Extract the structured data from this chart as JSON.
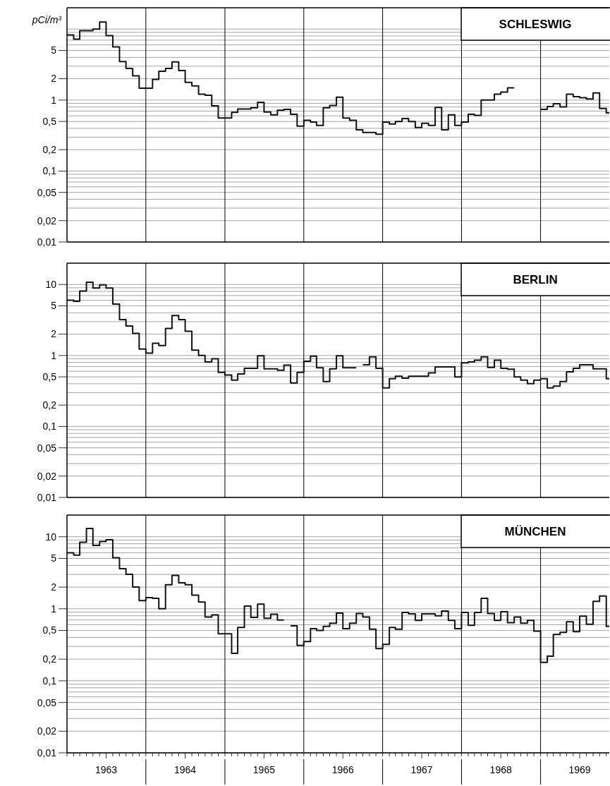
{
  "chart_data": [
    {
      "type": "step",
      "title": "SCHLESWIG",
      "ylabel": "pCi/m³",
      "log": true,
      "grid": "y",
      "tick_labels": "y",
      "color": "#111111",
      "line_style": "solid",
      "xlim": [
        "1963-01-01",
        "1969-11-15"
      ],
      "ylim": [
        0.01,
        20
      ],
      "yticks": [
        {
          "value": 0.01,
          "label": "0,01"
        },
        {
          "value": 0.02,
          "label": "0,02"
        },
        {
          "value": 0.03,
          "label": null
        },
        {
          "value": 0.04,
          "label": null
        },
        {
          "value": 0.05,
          "label": "0,05"
        },
        {
          "value": 0.06,
          "label": null
        },
        {
          "value": 0.07,
          "label": null
        },
        {
          "value": 0.08,
          "label": null
        },
        {
          "value": 0.09,
          "label": null
        },
        {
          "value": 0.1,
          "label": "0,1"
        },
        {
          "value": 0.2,
          "label": "0,2"
        },
        {
          "value": 0.3,
          "label": null
        },
        {
          "value": 0.4,
          "label": null
        },
        {
          "value": 0.5,
          "label": "0,5"
        },
        {
          "value": 0.6,
          "label": null
        },
        {
          "value": 0.7,
          "label": null
        },
        {
          "value": 0.8,
          "label": null
        },
        {
          "value": 0.9,
          "label": null
        },
        1,
        2,
        {
          "value": 3,
          "label": null
        },
        {
          "value": 4,
          "label": null
        },
        5,
        {
          "value": 6,
          "label": null
        },
        {
          "value": 7,
          "label": null
        },
        {
          "value": 8,
          "label": null
        },
        {
          "value": 9,
          "label": null
        },
        {
          "value": 10,
          "label": null
        }
      ],
      "ref_lines": [
        {
          "axis": "x",
          "value": "1964-01-01"
        },
        {
          "axis": "x",
          "value": "1965-01-01"
        },
        {
          "axis": "x",
          "value": "1966-01-01"
        },
        {
          "axis": "x",
          "value": "1967-01-01"
        },
        {
          "axis": "x",
          "value": "1968-01-01"
        },
        {
          "axis": "x",
          "value": "1969-01-01"
        }
      ],
      "x": [
        "1963-01",
        "1963-02",
        "1963-03",
        "1963-04",
        "1963-05",
        "1963-06",
        "1963-07",
        "1963-08",
        "1963-09",
        "1963-10",
        "1963-11",
        "1963-12",
        "1964-01",
        "1964-02",
        "1964-03",
        "1964-04",
        "1964-05",
        "1964-06",
        "1964-07",
        "1964-08",
        "1964-09",
        "1964-10",
        "1964-11",
        "1964-12",
        "1965-01",
        "1965-02",
        "1965-03",
        "1965-04",
        "1965-05",
        "1965-06",
        "1965-07",
        "1965-08",
        "1965-09",
        "1965-10",
        "1965-11",
        "1965-12",
        "1966-01",
        "1966-02",
        "1966-03",
        "1966-04",
        "1966-05",
        "1966-06",
        "1966-07",
        "1966-08",
        "1966-09",
        "1966-10",
        "1966-11",
        "1966-12",
        "1967-01",
        "1967-02",
        "1967-03",
        "1967-04",
        "1967-05",
        "1967-06",
        "1967-07",
        "1967-08",
        "1967-09",
        "1967-10",
        "1967-11",
        "1967-12",
        "1968-01",
        "1968-02",
        "1968-03",
        "1968-04",
        "1968-05",
        "1968-06",
        "1968-07",
        "1968-08",
        "1968-09",
        "1968-10",
        "1968-11",
        "1968-12",
        "1969-01",
        "1969-02",
        "1969-03",
        "1969-04",
        "1969-05",
        "1969-06",
        "1969-07",
        "1969-08",
        "1969-09",
        "1969-10",
        "1969-11"
      ],
      "values": [
        8.3,
        7.2,
        9.5,
        9.5,
        10,
        12.6,
        8.1,
        5.6,
        3.5,
        2.8,
        2.2,
        1.47,
        1.47,
        1.96,
        2.55,
        2.8,
        3.46,
        2.6,
        1.78,
        1.58,
        1.21,
        1.17,
        0.83,
        0.56,
        0.56,
        0.67,
        0.75,
        0.75,
        0.78,
        0.93,
        0.68,
        0.62,
        0.72,
        0.74,
        0.63,
        0.43,
        0.52,
        0.49,
        0.44,
        0.78,
        0.84,
        1.1,
        0.56,
        0.52,
        0.38,
        0.35,
        0.35,
        0.33,
        0.49,
        0.46,
        0.5,
        0.55,
        0.5,
        0.41,
        0.47,
        0.44,
        0.79,
        0.38,
        0.62,
        0.44,
        0.49,
        0.63,
        0.61,
        1.0,
        1.0,
        1.21,
        1.3,
        1.49,
        null,
        null,
        null,
        null,
        0.74,
        0.81,
        0.89,
        0.8,
        1.21,
        1.12,
        1.08,
        1.04,
        1.26,
        0.76,
        0.66
      ]
    },
    {
      "type": "step",
      "title": "BERLIN",
      "log": true,
      "grid": "y",
      "tick_labels": "y",
      "color": "#111111",
      "line_style": "solid",
      "xlim": [
        "1963-01-01",
        "1969-11-15"
      ],
      "ylim": [
        0.01,
        20
      ],
      "yticks": [
        {
          "value": 0.01,
          "label": "0,01"
        },
        {
          "value": 0.02,
          "label": "0,02"
        },
        {
          "value": 0.03,
          "label": null
        },
        {
          "value": 0.04,
          "label": null
        },
        {
          "value": 0.05,
          "label": "0,05"
        },
        {
          "value": 0.06,
          "label": null
        },
        {
          "value": 0.07,
          "label": null
        },
        {
          "value": 0.08,
          "label": null
        },
        {
          "value": 0.09,
          "label": null
        },
        {
          "value": 0.1,
          "label": "0,1"
        },
        {
          "value": 0.2,
          "label": "0,2"
        },
        {
          "value": 0.3,
          "label": null
        },
        {
          "value": 0.4,
          "label": null
        },
        {
          "value": 0.5,
          "label": "0,5"
        },
        {
          "value": 0.6,
          "label": null
        },
        {
          "value": 0.7,
          "label": null
        },
        {
          "value": 0.8,
          "label": null
        },
        {
          "value": 0.9,
          "label": null
        },
        1,
        2,
        {
          "value": 3,
          "label": null
        },
        {
          "value": 4,
          "label": null
        },
        5,
        {
          "value": 6,
          "label": null
        },
        {
          "value": 7,
          "label": null
        },
        {
          "value": 8,
          "label": null
        },
        {
          "value": 9,
          "label": null
        },
        10
      ],
      "ref_lines": [
        {
          "axis": "x",
          "value": "1964-01-01"
        },
        {
          "axis": "x",
          "value": "1965-01-01"
        },
        {
          "axis": "x",
          "value": "1966-01-01"
        },
        {
          "axis": "x",
          "value": "1967-01-01"
        },
        {
          "axis": "x",
          "value": "1968-01-01"
        },
        {
          "axis": "x",
          "value": "1969-01-01"
        }
      ],
      "x": [
        "1963-01",
        "1963-02",
        "1963-03",
        "1963-04",
        "1963-05",
        "1963-06",
        "1963-07",
        "1963-08",
        "1963-09",
        "1963-10",
        "1963-11",
        "1963-12",
        "1964-01",
        "1964-02",
        "1964-03",
        "1964-04",
        "1964-05",
        "1964-06",
        "1964-07",
        "1964-08",
        "1964-09",
        "1964-10",
        "1964-11",
        "1964-12",
        "1965-01",
        "1965-02",
        "1965-03",
        "1965-04",
        "1965-05",
        "1965-06",
        "1965-07",
        "1965-08",
        "1965-09",
        "1965-10",
        "1965-11",
        "1965-12",
        "1966-01",
        "1966-02",
        "1966-03",
        "1966-04",
        "1966-05",
        "1966-06",
        "1966-07",
        "1966-08",
        "1966-09",
        "1966-10",
        "1966-11",
        "1966-12",
        "1967-01",
        "1967-02",
        "1967-03",
        "1967-04",
        "1967-05",
        "1967-06",
        "1967-07",
        "1967-08",
        "1967-09",
        "1967-10",
        "1967-11",
        "1967-12",
        "1968-01",
        "1968-02",
        "1968-03",
        "1968-04",
        "1968-05",
        "1968-06",
        "1968-07",
        "1968-08",
        "1968-09",
        "1968-10",
        "1968-11",
        "1968-12",
        "1969-01",
        "1969-02",
        "1969-03",
        "1969-04",
        "1969-05",
        "1969-06",
        "1969-07",
        "1969-08",
        "1969-09",
        "1969-10",
        "1969-11"
      ],
      "values": [
        6.0,
        5.8,
        8.1,
        10.8,
        8.9,
        9.9,
        8.9,
        5.3,
        3.2,
        2.6,
        2.05,
        1.23,
        1.08,
        1.49,
        1.38,
        2.4,
        3.66,
        3.2,
        2.2,
        1.19,
        1.0,
        0.81,
        0.9,
        0.58,
        0.53,
        0.45,
        0.55,
        0.66,
        0.66,
        0.99,
        0.65,
        0.65,
        0.62,
        0.73,
        0.41,
        0.58,
        0.83,
        0.98,
        0.67,
        0.43,
        0.65,
        0.99,
        0.67,
        0.67,
        null,
        0.74,
        0.96,
        0.66,
        0.35,
        0.47,
        0.51,
        0.48,
        0.51,
        0.51,
        0.51,
        0.57,
        0.69,
        0.69,
        0.69,
        0.5,
        0.79,
        0.81,
        0.86,
        0.96,
        0.68,
        0.86,
        0.66,
        0.64,
        0.5,
        0.45,
        0.4,
        0.45,
        0.47,
        0.35,
        0.37,
        0.43,
        0.59,
        0.66,
        0.74,
        0.74,
        0.65,
        0.65,
        0.47
      ]
    },
    {
      "type": "step",
      "title": "MÜNCHEN",
      "log": true,
      "grid": "y",
      "color": "#111111",
      "line_style": "solid",
      "xlim": [
        "1963-01-01",
        "1969-11-15"
      ],
      "ylim": [
        0.01,
        20
      ],
      "yticks": [
        {
          "value": 0.01,
          "label": "0,01"
        },
        {
          "value": 0.02,
          "label": "0,02"
        },
        {
          "value": 0.03,
          "label": null
        },
        {
          "value": 0.04,
          "label": null
        },
        {
          "value": 0.05,
          "label": "0,05"
        },
        {
          "value": 0.06,
          "label": null
        },
        {
          "value": 0.07,
          "label": null
        },
        {
          "value": 0.08,
          "label": null
        },
        {
          "value": 0.09,
          "label": null
        },
        {
          "value": 0.1,
          "label": "0,1"
        },
        {
          "value": 0.2,
          "label": "0,2"
        },
        {
          "value": 0.3,
          "label": null
        },
        {
          "value": 0.4,
          "label": null
        },
        {
          "value": 0.5,
          "label": "0,5"
        },
        {
          "value": 0.6,
          "label": null
        },
        {
          "value": 0.7,
          "label": null
        },
        {
          "value": 0.8,
          "label": null
        },
        {
          "value": 0.9,
          "label": null
        },
        1,
        2,
        {
          "value": 3,
          "label": null
        },
        {
          "value": 4,
          "label": null
        },
        5,
        {
          "value": 6,
          "label": null
        },
        {
          "value": 7,
          "label": null
        },
        {
          "value": 8,
          "label": null
        },
        {
          "value": 9,
          "label": null
        },
        10
      ],
      "xticks": [
        {
          "value": "1963-01",
          "label": null
        },
        {
          "value": "1963-02",
          "label": null
        },
        {
          "value": "1963-03",
          "label": null
        },
        {
          "value": "1963-04",
          "label": null
        },
        {
          "value": "1963-05",
          "label": null
        },
        {
          "value": "1963-06",
          "label": null
        },
        {
          "value": "1963-07",
          "label": "1963"
        },
        {
          "value": "1963-08",
          "label": null
        },
        {
          "value": "1963-09",
          "label": null
        },
        {
          "value": "1963-10",
          "label": null
        },
        {
          "value": "1963-11",
          "label": null
        },
        {
          "value": "1963-12",
          "label": null
        },
        {
          "value": "1964-01",
          "label": null
        },
        {
          "value": "1964-02",
          "label": null
        },
        {
          "value": "1964-03",
          "label": null
        },
        {
          "value": "1964-04",
          "label": null
        },
        {
          "value": "1964-05",
          "label": null
        },
        {
          "value": "1964-06",
          "label": null
        },
        {
          "value": "1964-07",
          "label": "1964"
        },
        {
          "value": "1964-08",
          "label": null
        },
        {
          "value": "1964-09",
          "label": null
        },
        {
          "value": "1964-10",
          "label": null
        },
        {
          "value": "1964-11",
          "label": null
        },
        {
          "value": "1964-12",
          "label": null
        },
        {
          "value": "1965-01",
          "label": null
        },
        {
          "value": "1965-02",
          "label": null
        },
        {
          "value": "1965-03",
          "label": null
        },
        {
          "value": "1965-04",
          "label": null
        },
        {
          "value": "1965-05",
          "label": null
        },
        {
          "value": "1965-06",
          "label": null
        },
        {
          "value": "1965-07",
          "label": "1965"
        },
        {
          "value": "1965-08",
          "label": null
        },
        {
          "value": "1965-09",
          "label": null
        },
        {
          "value": "1965-10",
          "label": null
        },
        {
          "value": "1965-11",
          "label": null
        },
        {
          "value": "1965-12",
          "label": null
        },
        {
          "value": "1966-01",
          "label": null
        },
        {
          "value": "1966-02",
          "label": null
        },
        {
          "value": "1966-03",
          "label": null
        },
        {
          "value": "1966-04",
          "label": null
        },
        {
          "value": "1966-05",
          "label": null
        },
        {
          "value": "1966-06",
          "label": null
        },
        {
          "value": "1966-07",
          "label": "1966"
        },
        {
          "value": "1966-08",
          "label": null
        },
        {
          "value": "1966-09",
          "label": null
        },
        {
          "value": "1966-10",
          "label": null
        },
        {
          "value": "1966-11",
          "label": null
        },
        {
          "value": "1966-12",
          "label": null
        },
        {
          "value": "1967-01",
          "label": null
        },
        {
          "value": "1967-02",
          "label": null
        },
        {
          "value": "1967-03",
          "label": null
        },
        {
          "value": "1967-04",
          "label": null
        },
        {
          "value": "1967-05",
          "label": null
        },
        {
          "value": "1967-06",
          "label": null
        },
        {
          "value": "1967-07",
          "label": "1967"
        },
        {
          "value": "1967-08",
          "label": null
        },
        {
          "value": "1967-09",
          "label": null
        },
        {
          "value": "1967-10",
          "label": null
        },
        {
          "value": "1967-11",
          "label": null
        },
        {
          "value": "1967-12",
          "label": null
        },
        {
          "value": "1968-01",
          "label": null
        },
        {
          "value": "1968-02",
          "label": null
        },
        {
          "value": "1968-03",
          "label": null
        },
        {
          "value": "1968-04",
          "label": null
        },
        {
          "value": "1968-05",
          "label": null
        },
        {
          "value": "1968-06",
          "label": null
        },
        {
          "value": "1968-07",
          "label": "1968"
        },
        {
          "value": "1968-08",
          "label": null
        },
        {
          "value": "1968-09",
          "label": null
        },
        {
          "value": "1968-10",
          "label": null
        },
        {
          "value": "1968-11",
          "label": null
        },
        {
          "value": "1968-12",
          "label": null
        },
        {
          "value": "1969-01",
          "label": null
        },
        {
          "value": "1969-02",
          "label": null
        },
        {
          "value": "1969-03",
          "label": null
        },
        {
          "value": "1969-04",
          "label": null
        },
        {
          "value": "1969-05",
          "label": null
        },
        {
          "value": "1969-06",
          "label": null
        },
        {
          "value": "1969-07",
          "label": "1969"
        },
        {
          "value": "1969-08",
          "label": null
        },
        {
          "value": "1969-09",
          "label": null
        },
        {
          "value": "1969-10",
          "label": null
        },
        {
          "value": "1969-11",
          "label": null
        }
      ],
      "ref_lines": [
        {
          "axis": "x",
          "value": "1964-01-01"
        },
        {
          "axis": "x",
          "value": "1965-01-01"
        },
        {
          "axis": "x",
          "value": "1966-01-01"
        },
        {
          "axis": "x",
          "value": "1967-01-01"
        },
        {
          "axis": "x",
          "value": "1968-01-01"
        },
        {
          "axis": "x",
          "value": "1969-01-01"
        }
      ],
      "x": [
        "1963-01",
        "1963-02",
        "1963-03",
        "1963-04",
        "1963-05",
        "1963-06",
        "1963-07",
        "1963-08",
        "1963-09",
        "1963-10",
        "1963-11",
        "1963-12",
        "1964-01",
        "1964-02",
        "1964-03",
        "1964-04",
        "1964-05",
        "1964-06",
        "1964-07",
        "1964-08",
        "1964-09",
        "1964-10",
        "1964-11",
        "1964-12",
        "1965-01",
        "1965-02",
        "1965-03",
        "1965-04",
        "1965-05",
        "1965-06",
        "1965-07",
        "1965-08",
        "1965-09",
        "1965-10",
        "1965-11",
        "1965-12",
        "1966-01",
        "1966-02",
        "1966-03",
        "1966-04",
        "1966-05",
        "1966-06",
        "1966-07",
        "1966-08",
        "1966-09",
        "1966-10",
        "1966-11",
        "1966-12",
        "1967-01",
        "1967-02",
        "1967-03",
        "1967-04",
        "1967-05",
        "1967-06",
        "1967-07",
        "1967-08",
        "1967-09",
        "1967-10",
        "1967-11",
        "1967-12",
        "1968-01",
        "1968-02",
        "1968-03",
        "1968-04",
        "1968-05",
        "1968-06",
        "1968-07",
        "1968-08",
        "1968-09",
        "1968-10",
        "1968-11",
        "1968-12",
        "1969-01",
        "1969-02",
        "1969-03",
        "1969-04",
        "1969-05",
        "1969-06",
        "1969-07",
        "1969-08",
        "1969-09",
        "1969-10",
        "1969-11"
      ],
      "values": [
        6.0,
        5.55,
        8.4,
        13,
        7.6,
        8.6,
        9.1,
        5.1,
        3.6,
        3.0,
        2.0,
        1.3,
        1.43,
        1.4,
        1.0,
        2.16,
        2.9,
        2.3,
        2.16,
        1.55,
        1.24,
        0.77,
        0.82,
        0.45,
        0.45,
        0.24,
        0.55,
        1.09,
        0.76,
        1.16,
        0.74,
        0.84,
        0.7,
        null,
        0.58,
        0.31,
        0.35,
        0.53,
        0.5,
        0.57,
        0.63,
        0.87,
        0.53,
        0.63,
        0.86,
        0.77,
        0.52,
        0.28,
        0.32,
        0.55,
        0.52,
        0.89,
        0.85,
        0.69,
        0.85,
        0.85,
        0.8,
        0.93,
        0.69,
        0.53,
        0.89,
        0.59,
        0.89,
        1.4,
        0.86,
        0.69,
        0.91,
        0.64,
        0.77,
        0.63,
        0.69,
        0.49,
        0.18,
        0.22,
        0.44,
        0.47,
        0.66,
        0.48,
        0.79,
        0.61,
        1.27,
        1.5,
        0.57
      ]
    }
  ]
}
